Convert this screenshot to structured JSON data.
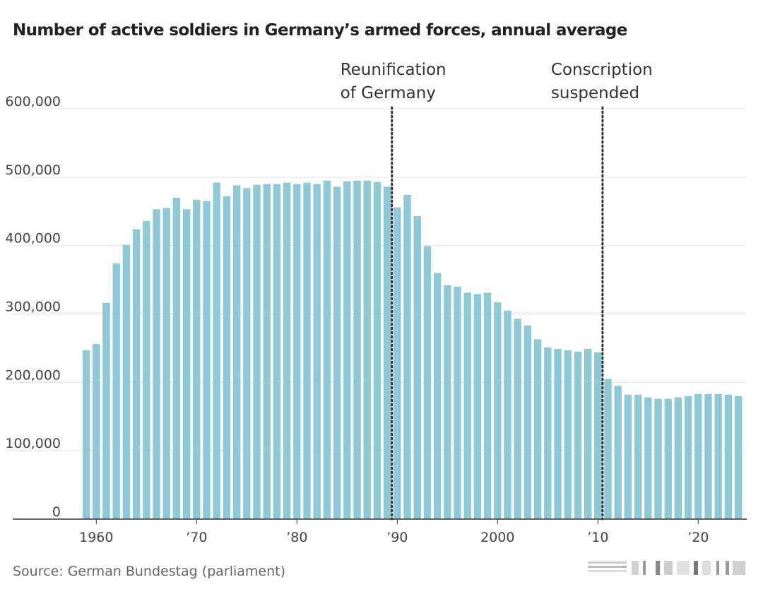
{
  "chart_data": {
    "type": "bar",
    "title": "Number of active soldiers in Germany’s armed forces, annual average",
    "source": "Source: German Bundestag (parliament)",
    "xlabel": "",
    "ylabel": "",
    "ylim": [
      0,
      600000
    ],
    "yticks": [
      {
        "value": 600000,
        "label": "600,000"
      },
      {
        "value": 500000,
        "label": "500,000"
      },
      {
        "value": 400000,
        "label": "400,000"
      },
      {
        "value": 300000,
        "label": "300,000"
      },
      {
        "value": 200000,
        "label": "200,000"
      },
      {
        "value": 100000,
        "label": "100,000"
      },
      {
        "value": 0,
        "label": "0"
      }
    ],
    "xticks": [
      {
        "year": 1960,
        "label": "1960"
      },
      {
        "year": 1970,
        "label": "’70"
      },
      {
        "year": 1980,
        "label": "’80"
      },
      {
        "year": 1990,
        "label": "’90"
      },
      {
        "year": 2000,
        "label": "2000"
      },
      {
        "year": 2010,
        "label": "’10"
      },
      {
        "year": 2020,
        "label": "’20"
      }
    ],
    "categories": [
      1959,
      1960,
      1961,
      1962,
      1963,
      1964,
      1965,
      1966,
      1967,
      1968,
      1969,
      1970,
      1971,
      1972,
      1973,
      1974,
      1975,
      1976,
      1977,
      1978,
      1979,
      1980,
      1981,
      1982,
      1983,
      1984,
      1985,
      1986,
      1987,
      1988,
      1989,
      1990,
      1991,
      1992,
      1993,
      1994,
      1995,
      1996,
      1997,
      1998,
      1999,
      2000,
      2001,
      2002,
      2003,
      2004,
      2005,
      2006,
      2007,
      2008,
      2009,
      2010,
      2011,
      2012,
      2013,
      2014,
      2015,
      2016,
      2017,
      2018,
      2019,
      2020,
      2021,
      2022,
      2023,
      2024
    ],
    "values": [
      247000,
      256000,
      316000,
      374000,
      401000,
      424000,
      436000,
      453000,
      455000,
      470000,
      453000,
      467000,
      465000,
      492000,
      472000,
      488000,
      484000,
      489000,
      490000,
      490000,
      492000,
      490000,
      492000,
      490000,
      495000,
      486000,
      494000,
      495000,
      495000,
      493000,
      486000,
      456000,
      474000,
      443000,
      399000,
      360000,
      342000,
      340000,
      331000,
      329000,
      331000,
      317000,
      305000,
      293000,
      283000,
      263000,
      251000,
      249000,
      247000,
      245000,
      249000,
      244000,
      205000,
      195000,
      182000,
      182000,
      178000,
      176000,
      176000,
      178000,
      180000,
      183000,
      183000,
      183000,
      182000,
      180000
    ],
    "bar_color": "#8ecad5",
    "annotations": [
      {
        "year": 1990,
        "lines": [
          "Reunification",
          "of Germany"
        ]
      },
      {
        "year": 2011,
        "lines": [
          "Conscription",
          "suspended"
        ]
      }
    ]
  }
}
